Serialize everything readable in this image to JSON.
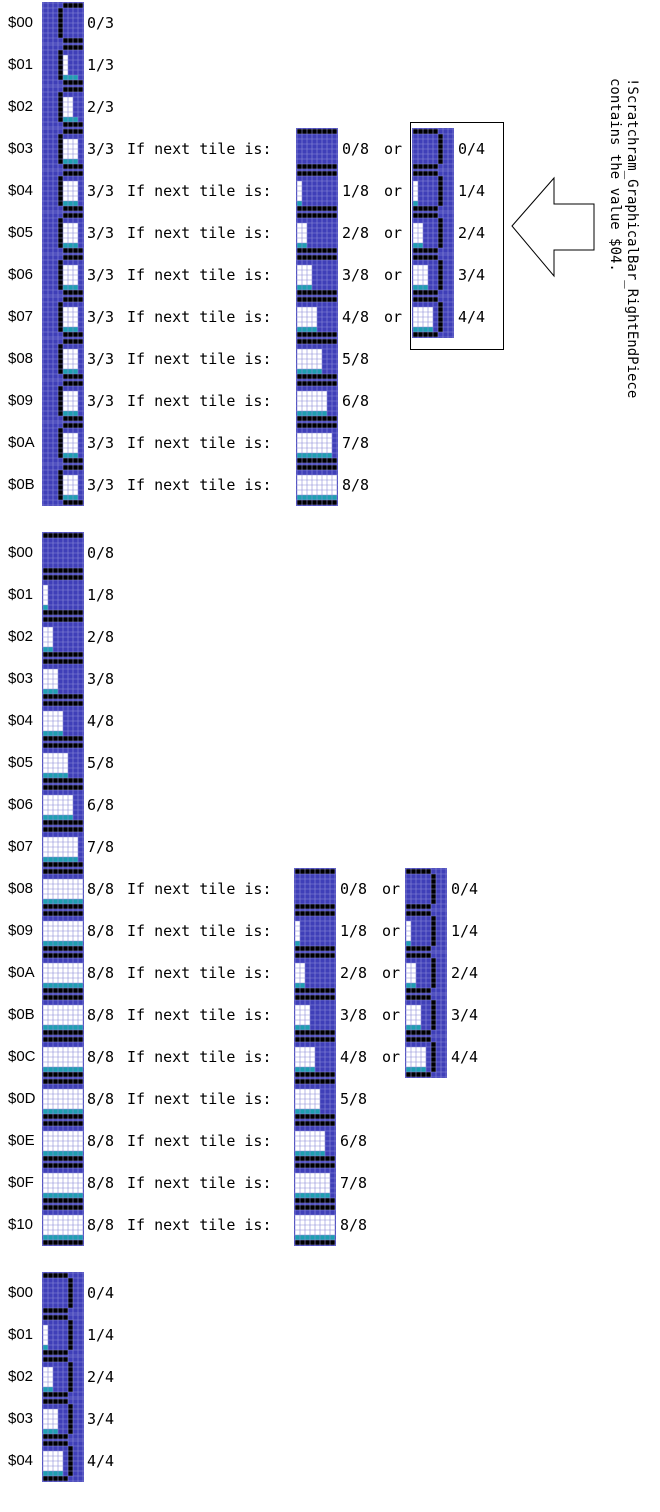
{
  "tile_colors": {
    "bg": "#3f3fb8",
    "grid": "#8c8cd8",
    "black": "#000000",
    "white": "#ffffff",
    "teal": "#1e9fb0"
  },
  "glyphs": {
    "if_next": "If next tile is:",
    "or": "or"
  },
  "note": {
    "line1": "!Scratchram_GraphicalBar_RightEndPiece",
    "line2": "contains the value $04."
  },
  "section_left_end": {
    "rows": [
      {
        "index": "$00",
        "fill": "0/3"
      },
      {
        "index": "$01",
        "fill": "1/3"
      },
      {
        "index": "$02",
        "fill": "2/3"
      },
      {
        "index": "$03",
        "fill": "3/3",
        "next_middle": "0/8",
        "next_end": "0/4"
      },
      {
        "index": "$04",
        "fill": "3/3",
        "next_middle": "1/8",
        "next_end": "1/4"
      },
      {
        "index": "$05",
        "fill": "3/3",
        "next_middle": "2/8",
        "next_end": "2/4"
      },
      {
        "index": "$06",
        "fill": "3/3",
        "next_middle": "3/8",
        "next_end": "3/4"
      },
      {
        "index": "$07",
        "fill": "3/3",
        "next_middle": "4/8",
        "next_end": "4/4"
      },
      {
        "index": "$08",
        "fill": "3/3",
        "next_middle": "5/8"
      },
      {
        "index": "$09",
        "fill": "3/3",
        "next_middle": "6/8"
      },
      {
        "index": "$0A",
        "fill": "3/3",
        "next_middle": "7/8"
      },
      {
        "index": "$0B",
        "fill": "3/3",
        "next_middle": "8/8"
      }
    ]
  },
  "section_middle": {
    "rows": [
      {
        "index": "$00",
        "fill": "0/8"
      },
      {
        "index": "$01",
        "fill": "1/8"
      },
      {
        "index": "$02",
        "fill": "2/8"
      },
      {
        "index": "$03",
        "fill": "3/8"
      },
      {
        "index": "$04",
        "fill": "4/8"
      },
      {
        "index": "$05",
        "fill": "5/8"
      },
      {
        "index": "$06",
        "fill": "6/8"
      },
      {
        "index": "$07",
        "fill": "7/8"
      },
      {
        "index": "$08",
        "fill": "8/8",
        "next_middle": "0/8",
        "next_end": "0/4"
      },
      {
        "index": "$09",
        "fill": "8/8",
        "next_middle": "1/8",
        "next_end": "1/4"
      },
      {
        "index": "$0A",
        "fill": "8/8",
        "next_middle": "2/8",
        "next_end": "2/4"
      },
      {
        "index": "$0B",
        "fill": "8/8",
        "next_middle": "3/8",
        "next_end": "3/4"
      },
      {
        "index": "$0C",
        "fill": "8/8",
        "next_middle": "4/8",
        "next_end": "4/4"
      },
      {
        "index": "$0D",
        "fill": "8/8",
        "next_middle": "5/8"
      },
      {
        "index": "$0E",
        "fill": "8/8",
        "next_middle": "6/8"
      },
      {
        "index": "$0F",
        "fill": "8/8",
        "next_middle": "7/8"
      },
      {
        "index": "$10",
        "fill": "8/8",
        "next_middle": "8/8"
      }
    ]
  },
  "section_right_end": {
    "rows": [
      {
        "index": "$00",
        "fill": "0/4"
      },
      {
        "index": "$01",
        "fill": "1/4"
      },
      {
        "index": "$02",
        "fill": "2/4"
      },
      {
        "index": "$03",
        "fill": "3/4"
      },
      {
        "index": "$04",
        "fill": "4/4"
      }
    ]
  }
}
